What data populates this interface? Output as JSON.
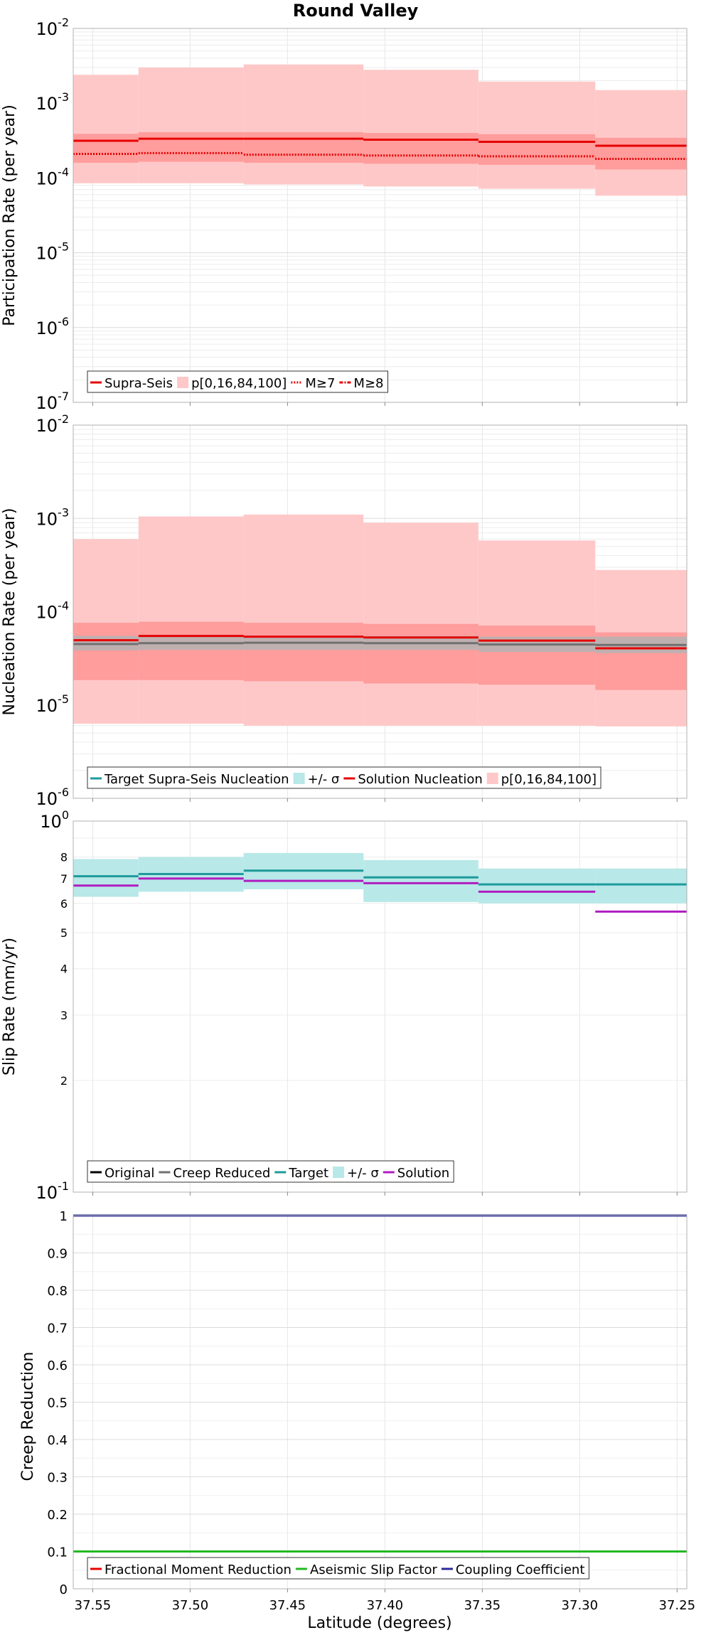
{
  "title": "Round Valley",
  "xlabel": "Latitude (degrees)",
  "colors": {
    "red": "#e60000",
    "red_band": "#ffc8c8",
    "red_band_inner": "#ff9c9c",
    "gray": "#707070",
    "gray_band": "#b4b4b4",
    "teal": "#1e9a9a",
    "teal_band": "#b8e8e8",
    "magenta": "#b01cc0",
    "green": "#22b822",
    "navy": "#2a2a9a",
    "black": "#000000"
  },
  "chart_data": [
    {
      "type": "line",
      "name": "participation",
      "ylabel": "Participation Rate (per year)",
      "yscale": "log",
      "ylim": [
        1e-07,
        0.01
      ],
      "xlim": [
        37.56,
        37.245
      ],
      "x_ticks": [
        "37.55",
        "37.50",
        "37.45",
        "37.40",
        "37.35",
        "37.30",
        "37.25"
      ],
      "y_ticks": [
        {
          "base": "10",
          "exp": "-7"
        },
        {
          "base": "10",
          "exp": "-6"
        },
        {
          "base": "10",
          "exp": "-5"
        },
        {
          "base": "10",
          "exp": "-4"
        },
        {
          "base": "10",
          "exp": "-3"
        },
        {
          "base": "10",
          "exp": "-2"
        }
      ],
      "segments": [
        37.56,
        37.5265,
        37.4725,
        37.411,
        37.352,
        37.292,
        37.245
      ],
      "bands": [
        {
          "color": "red_band",
          "low": [
            8.5e-05,
            8.5e-05,
            8.2e-05,
            7.7e-05,
            7.2e-05,
            5.8e-05
          ],
          "high": [
            0.0024,
            0.003,
            0.0033,
            0.0028,
            0.00195,
            0.0015
          ]
        },
        {
          "color": "red_band_inner",
          "low": [
            0.00016,
            0.000165,
            0.00016,
            0.000155,
            0.00015,
            0.00013
          ],
          "high": [
            0.00039,
            0.00041,
            0.00041,
            0.0004,
            0.000385,
            0.000345
          ]
        }
      ],
      "series": [
        {
          "name": "Supra-Seis",
          "color": "red",
          "style": "solid",
          "values": [
            0.000315,
            0.000335,
            0.000335,
            0.000325,
            0.000305,
            0.00027
          ]
        },
        {
          "name": "M≥7",
          "color": "red",
          "style": "dotted",
          "values": [
            0.00021,
            0.000215,
            0.000205,
            0.0002,
            0.000195,
            0.00018
          ]
        }
      ],
      "legend": [
        {
          "label": "Supra-Seis",
          "color": "red",
          "kind": "line"
        },
        {
          "label": "p[0,16,84,100]",
          "color": "red_band",
          "kind": "band"
        },
        {
          "label": "M≥7",
          "color": "red",
          "kind": "dotted"
        },
        {
          "label": "M≥8",
          "color": "red",
          "kind": "dashdot"
        }
      ],
      "legend_position": "bottom-left"
    },
    {
      "type": "line",
      "name": "nucleation",
      "ylabel": "Nucleation Rate (per year)",
      "yscale": "log",
      "ylim": [
        1e-06,
        0.01
      ],
      "xlim": [
        37.56,
        37.245
      ],
      "x_ticks": [
        "37.55",
        "37.50",
        "37.45",
        "37.40",
        "37.35",
        "37.30",
        "37.25"
      ],
      "y_ticks": [
        {
          "base": "10",
          "exp": "-6"
        },
        {
          "base": "10",
          "exp": "-5"
        },
        {
          "base": "10",
          "exp": "-4"
        },
        {
          "base": "10",
          "exp": "-3"
        },
        {
          "base": "10",
          "exp": "-2"
        }
      ],
      "segments": [
        37.56,
        37.5265,
        37.4725,
        37.411,
        37.352,
        37.292,
        37.245
      ],
      "bands": [
        {
          "color": "red_band",
          "low": [
            6.3e-06,
            6.3e-06,
            6e-06,
            6e-06,
            6e-06,
            5.9e-06
          ],
          "high": [
            0.0006,
            0.00105,
            0.0011,
            0.0009,
            0.00058,
            0.00028
          ]
        },
        {
          "color": "red_band_inner",
          "low": [
            1.85e-05,
            1.85e-05,
            1.8e-05,
            1.7e-05,
            1.65e-05,
            1.45e-05
          ],
          "high": [
            7.6e-05,
            7.8e-05,
            7.6e-05,
            7.4e-05,
            7.1e-05,
            6e-05
          ]
        },
        {
          "color": "gray_band",
          "low": [
            3.85e-05,
            3.9e-05,
            3.9e-05,
            3.9e-05,
            3.7e-05,
            3.6e-05
          ],
          "high": [
            5.5e-05,
            5.5e-05,
            5.55e-05,
            5.5e-05,
            5.4e-05,
            5.4e-05
          ]
        }
      ],
      "series": [
        {
          "name": "Target Supra-Seis Nucleation",
          "color": "gray",
          "style": "solid",
          "values": [
            4.5e-05,
            4.6e-05,
            4.65e-05,
            4.6e-05,
            4.45e-05,
            4.4e-05
          ]
        },
        {
          "name": "Solution Nucleation",
          "color": "red",
          "style": "solid",
          "values": [
            4.95e-05,
            5.5e-05,
            5.4e-05,
            5.3e-05,
            4.9e-05,
            4.05e-05
          ]
        }
      ],
      "legend": [
        {
          "label": "Target Supra-Seis Nucleation",
          "color": "teal",
          "kind": "line"
        },
        {
          "label": "+/- σ",
          "color": "teal_band",
          "kind": "band"
        },
        {
          "label": "Solution Nucleation",
          "color": "red",
          "kind": "line"
        },
        {
          "label": "p[0,16,84,100]",
          "color": "red_band",
          "kind": "band"
        }
      ],
      "legend_position": "bottom-left"
    },
    {
      "type": "line",
      "name": "slip",
      "ylabel": "Slip Rate (mm/yr)",
      "yscale": "log",
      "ylim": [
        1,
        10
      ],
      "xlim": [
        37.56,
        37.245
      ],
      "x_ticks": [
        "37.55",
        "37.50",
        "37.45",
        "37.40",
        "37.35",
        "37.30",
        "37.25"
      ],
      "y_ticks": [
        {
          "base": "10",
          "exp": "-1"
        },
        {
          "base": "10",
          "exp": "0"
        }
      ],
      "y_minor_labels": [
        "2",
        "3",
        "4",
        "5",
        "6",
        "7",
        "8"
      ],
      "segments": [
        37.56,
        37.5265,
        37.4725,
        37.411,
        37.352,
        37.292,
        37.245
      ],
      "bands": [
        {
          "color": "teal_band",
          "low": [
            6.25,
            6.45,
            6.55,
            6.05,
            6.0,
            6.0
          ],
          "high": [
            7.9,
            8.0,
            8.2,
            7.85,
            7.45,
            7.45
          ]
        }
      ],
      "series": [
        {
          "name": "Target",
          "color": "teal",
          "style": "solid",
          "values": [
            7.1,
            7.2,
            7.35,
            7.05,
            6.75,
            6.75
          ]
        },
        {
          "name": "Solution",
          "color": "magenta",
          "style": "solid",
          "values": [
            6.7,
            7.0,
            6.9,
            6.8,
            6.45,
            5.7
          ]
        }
      ],
      "legend": [
        {
          "label": "Original",
          "color": "black",
          "kind": "line"
        },
        {
          "label": "Creep Reduced",
          "color": "gray",
          "kind": "line"
        },
        {
          "label": "Target",
          "color": "teal",
          "kind": "line"
        },
        {
          "label": "+/- σ",
          "color": "teal_band",
          "kind": "band"
        },
        {
          "label": "Solution",
          "color": "magenta",
          "kind": "line"
        }
      ],
      "legend_position": "bottom-left"
    },
    {
      "type": "line",
      "name": "creep",
      "ylabel": "Creep Reduction",
      "yscale": "linear",
      "ylim": [
        0,
        1
      ],
      "xlim": [
        37.56,
        37.245
      ],
      "x_ticks": [
        "37.55",
        "37.50",
        "37.45",
        "37.40",
        "37.35",
        "37.30",
        "37.25"
      ],
      "y_ticks_linear": [
        "0",
        "0.1",
        "0.2",
        "0.3",
        "0.4",
        "0.5",
        "0.6",
        "0.7",
        "0.8",
        "0.9",
        "1"
      ],
      "series": [
        {
          "name": "Aseismic Slip Factor",
          "color": "green",
          "style": "solid",
          "values": [
            0.1
          ]
        },
        {
          "name": "Coupling Coefficient",
          "color": "navy",
          "style": "solid",
          "values": [
            1.0
          ]
        }
      ],
      "legend": [
        {
          "label": "Fractional Moment Reduction",
          "color": "red",
          "kind": "line"
        },
        {
          "label": "Aseismic Slip Factor",
          "color": "green",
          "kind": "line"
        },
        {
          "label": "Coupling Coefficient",
          "color": "navy",
          "kind": "line"
        }
      ],
      "legend_position": "bottom-left"
    }
  ]
}
